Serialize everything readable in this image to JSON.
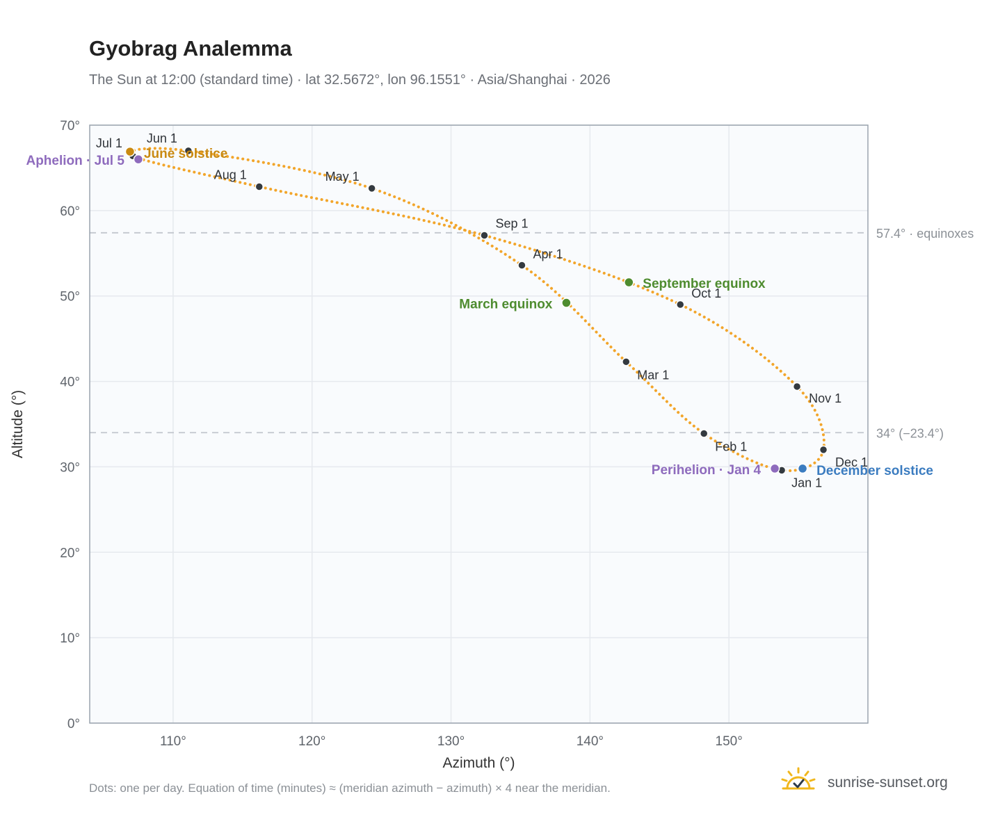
{
  "title": "Gyobrag Analemma",
  "subtitle": "The Sun at 12:00 (standard time) · lat 32.5672°, lon 96.1551° · Asia/Shanghai · 2026",
  "footnote": "Dots: one per day. Equation of time (minutes) ≈ (meridian azimuth − azimuth) × 4 near the meridian.",
  "brand": "sunrise-sunset.org",
  "brand_icon": "sun-icon",
  "colors": {
    "curve": "#f2a52a",
    "month_dot": "#343a40",
    "solstice_june": "#c98a12",
    "solstice_december": "#3b7cc0",
    "equinox": "#4e8c2f",
    "perihelion_aphelion": "#8e6bbd",
    "reference_line": "#c2c7ce",
    "plot_background": "#f9fbfd",
    "grid": "#e6e9ee",
    "frame": "#9aa3ae"
  },
  "chart_data": {
    "type": "scatter",
    "title": "Gyobrag Analemma",
    "xlabel": "Azimuth (°)",
    "ylabel": "Altitude (°)",
    "xlim": [
      104,
      160
    ],
    "ylim": [
      0,
      70
    ],
    "grid": true,
    "xticks": [
      110,
      120,
      130,
      140,
      150
    ],
    "xtick_labels": [
      "110°",
      "120°",
      "130°",
      "140°",
      "150°"
    ],
    "yticks": [
      0,
      10,
      20,
      30,
      40,
      50,
      60,
      70
    ],
    "ytick_labels": [
      "0°",
      "10°",
      "20°",
      "30°",
      "40°",
      "50°",
      "60°",
      "70°"
    ],
    "reference_lines": [
      {
        "y": 57.4,
        "label": "57.4° · equinoxes"
      },
      {
        "y": 34,
        "label": "34° (−23.4°)"
      }
    ],
    "month_points": [
      {
        "label": "Jan 1",
        "az": 153.8,
        "alt": 29.6
      },
      {
        "label": "Feb 1",
        "az": 148.2,
        "alt": 33.9
      },
      {
        "label": "Mar 1",
        "az": 142.6,
        "alt": 42.3
      },
      {
        "label": "Apr 1",
        "az": 135.1,
        "alt": 53.6
      },
      {
        "label": "May 1",
        "az": 124.3,
        "alt": 62.6
      },
      {
        "label": "Jun 1",
        "az": 111.1,
        "alt": 67.0
      },
      {
        "label": "Jul 1",
        "az": 107.1,
        "alt": 66.4
      },
      {
        "label": "Aug 1",
        "az": 116.2,
        "alt": 62.8
      },
      {
        "label": "Sep 1",
        "az": 132.4,
        "alt": 57.1
      },
      {
        "label": "Oct 1",
        "az": 146.5,
        "alt": 49.0
      },
      {
        "label": "Nov 1",
        "az": 154.9,
        "alt": 39.4
      },
      {
        "label": "Dec 1",
        "az": 156.8,
        "alt": 32.0
      }
    ],
    "events": [
      {
        "label": "June solstice",
        "az": 106.9,
        "alt": 66.9,
        "kind": "solstice_june"
      },
      {
        "label": "December solstice",
        "az": 155.3,
        "alt": 29.8,
        "kind": "solstice_december"
      },
      {
        "label": "March equinox",
        "az": 138.3,
        "alt": 49.2,
        "kind": "equinox"
      },
      {
        "label": "September equinox",
        "az": 142.8,
        "alt": 51.6,
        "kind": "equinox"
      },
      {
        "label": "Perihelion · Jan 4",
        "az": 153.3,
        "alt": 29.8,
        "kind": "perihelion_aphelion"
      },
      {
        "label": "Aphelion · Jul 5",
        "az": 107.5,
        "alt": 66.0,
        "kind": "perihelion_aphelion"
      }
    ]
  }
}
